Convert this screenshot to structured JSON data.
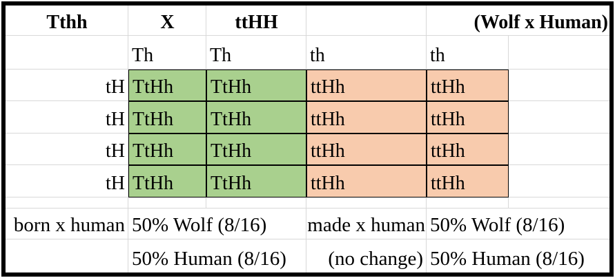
{
  "colors": {
    "wolf_fill_green": "#a9d08e",
    "human_fill_orange": "#f8cbad",
    "gridline": "#d8d8d8",
    "frame_border": "#000000"
  },
  "header": {
    "parent1": "Tthh",
    "cross": "X",
    "parent2": "ttHH",
    "note": "(Wolf x Human)"
  },
  "punnett": {
    "col_gametes": [
      "Th",
      "Th",
      "th",
      "th"
    ],
    "row_gametes": [
      "tH",
      "tH",
      "tH",
      "tH"
    ],
    "cells": [
      [
        "TtHh",
        "TtHh",
        "ttHh",
        "ttHh"
      ],
      [
        "TtHh",
        "TtHh",
        "ttHh",
        "ttHh"
      ],
      [
        "TtHh",
        "TtHh",
        "ttHh",
        "ttHh"
      ],
      [
        "TtHh",
        "TtHh",
        "ttHh",
        "ttHh"
      ]
    ]
  },
  "summary": {
    "left": {
      "label": "born x human",
      "line1": "50% Wolf (8/16)",
      "line2": "50% Human (8/16)"
    },
    "right": {
      "label": "made x human",
      "sub": "(no change)",
      "line1": "50% Wolf (8/16)",
      "line2": "50% Human (8/16)"
    }
  }
}
